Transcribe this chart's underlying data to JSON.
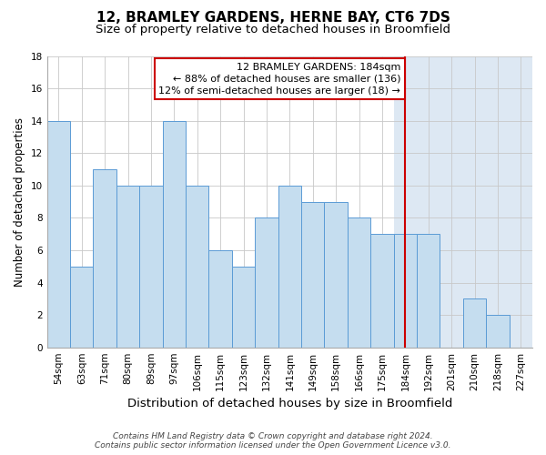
{
  "title": "12, BRAMLEY GARDENS, HERNE BAY, CT6 7DS",
  "subtitle": "Size of property relative to detached houses in Broomfield",
  "xlabel": "Distribution of detached houses by size in Broomfield",
  "ylabel": "Number of detached properties",
  "categories": [
    "54sqm",
    "63sqm",
    "71sqm",
    "80sqm",
    "89sqm",
    "97sqm",
    "106sqm",
    "115sqm",
    "123sqm",
    "132sqm",
    "141sqm",
    "149sqm",
    "158sqm",
    "166sqm",
    "175sqm",
    "184sqm",
    "192sqm",
    "201sqm",
    "210sqm",
    "218sqm",
    "227sqm"
  ],
  "values": [
    14,
    5,
    11,
    10,
    10,
    14,
    10,
    6,
    5,
    8,
    10,
    9,
    9,
    8,
    7,
    7,
    7,
    0,
    3,
    2,
    0
  ],
  "bar_color": "#c5ddef",
  "bar_edge_color": "#5b9bd5",
  "grid_color": "#c8c8c8",
  "vline_x_idx": 15,
  "vline_color": "#cc0000",
  "highlight_color": "#dde8f3",
  "annotation_title": "12 BRAMLEY GARDENS: 184sqm",
  "annotation_line1": "← 88% of detached houses are smaller (136)",
  "annotation_line2": "12% of semi-detached houses are larger (18) →",
  "annotation_box_color": "#ffffff",
  "annotation_box_edge": "#cc0000",
  "ylim": [
    0,
    18
  ],
  "yticks": [
    0,
    2,
    4,
    6,
    8,
    10,
    12,
    14,
    16,
    18
  ],
  "footnote1": "Contains HM Land Registry data © Crown copyright and database right 2024.",
  "footnote2": "Contains public sector information licensed under the Open Government Licence v3.0.",
  "title_fontsize": 11,
  "subtitle_fontsize": 9.5,
  "xlabel_fontsize": 9.5,
  "ylabel_fontsize": 8.5,
  "tick_fontsize": 7.5,
  "annotation_fontsize": 8,
  "footnote_fontsize": 6.5
}
